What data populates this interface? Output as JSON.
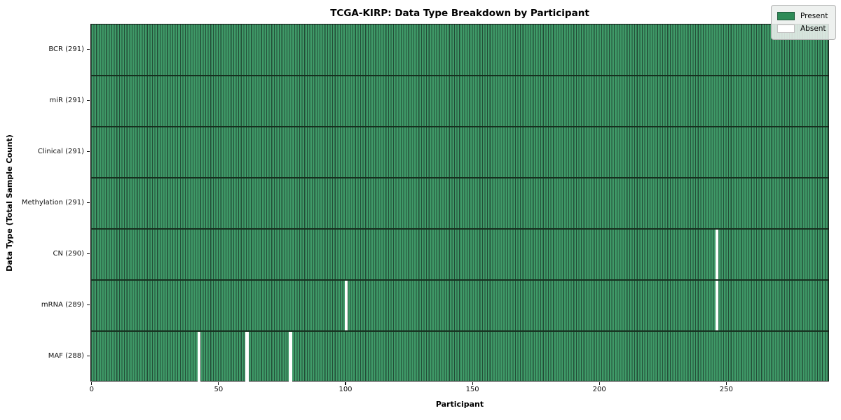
{
  "title": "TCGA-KIRP: Data Type Breakdown by Participant",
  "x_axis_label": "Participant",
  "y_axis_label": "Data Type (Total Sample Count)",
  "colors": {
    "present": "#2e8b57",
    "present_fill": "#3f9a68",
    "present_edge": "#234d37",
    "absent": "#ffffff",
    "separator": "#16301f",
    "legend_bg": "#ececec"
  },
  "chart_data": {
    "type": "heatmap",
    "title": "TCGA-KIRP: Data Type Breakdown by Participant",
    "xlabel": "Participant",
    "ylabel": "Data Type (Total Sample Count)",
    "n_participants": 291,
    "xlim": [
      0,
      291
    ],
    "x_ticks": [
      0,
      50,
      100,
      150,
      200,
      250
    ],
    "grid": false,
    "legend_position": "upper right",
    "legend": [
      {
        "label": "Present",
        "color": "#2e8b57"
      },
      {
        "label": "Absent",
        "color": "#ffffff"
      }
    ],
    "rows": [
      {
        "data_type": "BCR",
        "label": "BCR (291)",
        "present_count": 291,
        "absent_count": 0,
        "absent_participants": []
      },
      {
        "data_type": "miR",
        "label": "miR (291)",
        "present_count": 291,
        "absent_count": 0,
        "absent_participants": []
      },
      {
        "data_type": "Clinical",
        "label": "Clinical (291)",
        "present_count": 291,
        "absent_count": 0,
        "absent_participants": []
      },
      {
        "data_type": "Methylation",
        "label": "Methylation (291)",
        "present_count": 291,
        "absent_count": 0,
        "absent_participants": []
      },
      {
        "data_type": "CN",
        "label": "CN (290)",
        "present_count": 290,
        "absent_count": 1,
        "absent_participants": [
          246
        ]
      },
      {
        "data_type": "mRNA",
        "label": "mRNA (289)",
        "present_count": 289,
        "absent_count": 2,
        "absent_participants": [
          100,
          246
        ]
      },
      {
        "data_type": "MAF",
        "label": "MAF (288)",
        "present_count": 288,
        "absent_count": 3,
        "absent_participants": [
          42,
          61,
          78
        ]
      }
    ]
  }
}
